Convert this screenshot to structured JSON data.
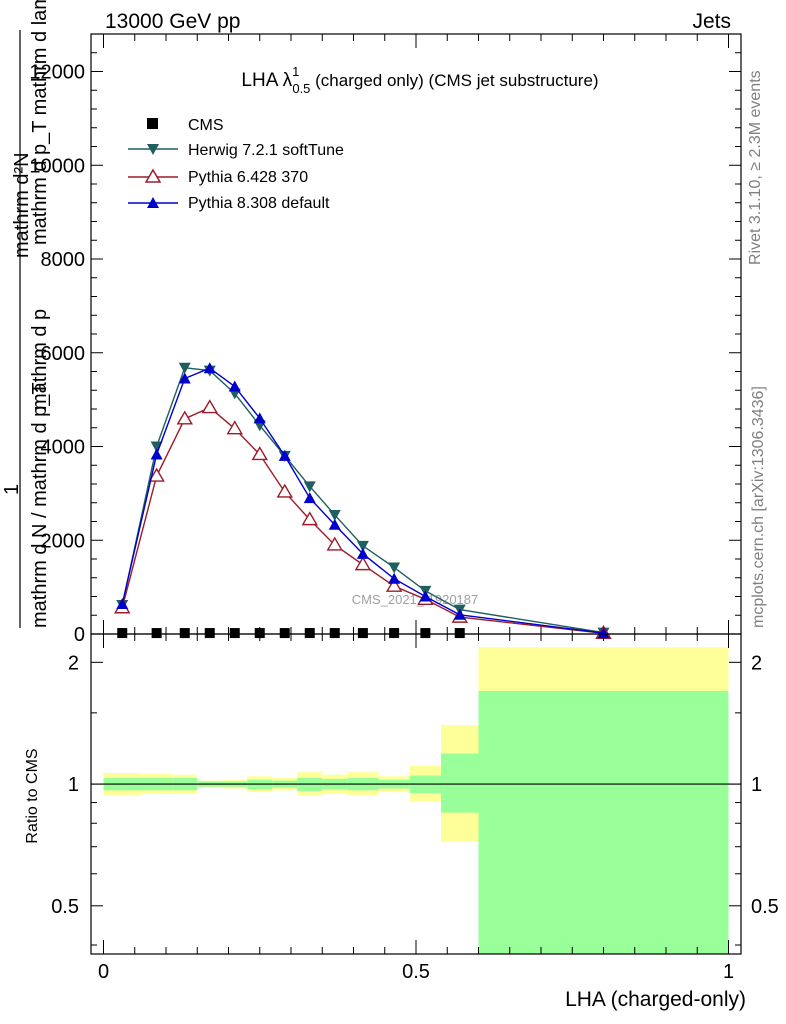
{
  "header": {
    "left": "13000 GeV pp",
    "right": "Jets"
  },
  "side_labels": {
    "upper": "Rivet 3.1.10, ≥ 2.3M events",
    "lower": "mcplots.cern.ch [arXiv:1306.3436]"
  },
  "watermark": "CMS_2021_I1920187",
  "chart_data": [
    {
      "type": "line",
      "title_main": "LHA λ",
      "title_sup": "1",
      "title_sub": "0.5",
      "title_rest": " (charged only) (CMS jet substructure)",
      "ylabel": {
        "num_top": "mathrm d²N",
        "num_bottom": "mathrm d p_T mathrm d lambda",
        "frac_one": "1",
        "den": "mathrm d N / mathrm d p_T",
        "den_extra": "mathrm d p"
      },
      "ylim": [
        0,
        12800
      ],
      "yticks": [
        0,
        2000,
        4000,
        6000,
        8000,
        10000,
        12000
      ],
      "ytick_labels": [
        "0",
        "2000",
        "4000",
        "6000",
        "8000",
        "10000",
        "12000"
      ],
      "xlim": [
        -0.02,
        1.02
      ],
      "legend_position": "top-left",
      "series": [
        {
          "name": "CMS",
          "color": "#000000",
          "marker": "square",
          "x": [
            0.03,
            0.085,
            0.13,
            0.17,
            0.21,
            0.25,
            0.29,
            0.33,
            0.37,
            0.415,
            0.465,
            0.515,
            0.57
          ],
          "values": [
            20,
            20,
            20,
            20,
            20,
            20,
            20,
            20,
            20,
            20,
            20,
            20,
            20
          ]
        },
        {
          "name": "Herwig 7.2.1 softTune",
          "color": "#1f5f5f",
          "marker": "triangle-down",
          "x": [
            0.03,
            0.085,
            0.13,
            0.17,
            0.21,
            0.25,
            0.29,
            0.33,
            0.37,
            0.415,
            0.465,
            0.515,
            0.57,
            0.8
          ],
          "values": [
            620,
            4000,
            5680,
            5620,
            5130,
            4450,
            3800,
            3150,
            2540,
            1880,
            1420,
            920,
            520,
            30
          ]
        },
        {
          "name": "Pythia 6.428 370",
          "color": "#9b1c2a",
          "marker": "triangle-up-open",
          "x": [
            0.03,
            0.085,
            0.13,
            0.17,
            0.21,
            0.25,
            0.29,
            0.33,
            0.37,
            0.415,
            0.465,
            0.515,
            0.57,
            0.8
          ],
          "values": [
            560,
            3370,
            4590,
            4830,
            4380,
            3830,
            3030,
            2440,
            1900,
            1480,
            1020,
            740,
            360,
            15
          ]
        },
        {
          "name": "Pythia 8.308 default",
          "color": "#0000cc",
          "marker": "triangle-up",
          "x": [
            0.03,
            0.085,
            0.13,
            0.17,
            0.21,
            0.25,
            0.29,
            0.33,
            0.37,
            0.415,
            0.465,
            0.515,
            0.57,
            0.8
          ],
          "values": [
            640,
            3830,
            5450,
            5670,
            5280,
            4600,
            3800,
            2900,
            2330,
            1710,
            1180,
            800,
            410,
            20
          ]
        }
      ]
    },
    {
      "type": "area",
      "ylabel": "Ratio to CMS",
      "ylim": [
        0.38,
        2.35
      ],
      "log_scale_y": true,
      "yticks": [
        0.5,
        1,
        2
      ],
      "ytick_labels": [
        "0.5",
        "1",
        "2"
      ],
      "xlim": [
        -0.02,
        1.02
      ],
      "xticks": [
        0,
        0.5,
        1
      ],
      "xtick_labels": [
        "0",
        "0.5",
        "1"
      ],
      "xlabel": "LHA (charged-only)",
      "band_colors": {
        "outer": "#ffff99",
        "inner": "#99ff99"
      },
      "reference_line": 1,
      "bins": [
        {
          "x0": 0.0,
          "x1": 0.06,
          "inner": [
            0.965,
            1.035
          ],
          "outer": [
            0.94,
            1.065
          ]
        },
        {
          "x0": 0.06,
          "x1": 0.11,
          "inner": [
            0.965,
            1.035
          ],
          "outer": [
            0.945,
            1.06
          ]
        },
        {
          "x0": 0.11,
          "x1": 0.15,
          "inner": [
            0.965,
            1.035
          ],
          "outer": [
            0.945,
            1.055
          ]
        },
        {
          "x0": 0.15,
          "x1": 0.19,
          "inner": [
            0.985,
            1.015
          ],
          "outer": [
            0.98,
            1.02
          ]
        },
        {
          "x0": 0.19,
          "x1": 0.23,
          "inner": [
            0.985,
            1.015
          ],
          "outer": [
            0.975,
            1.025
          ]
        },
        {
          "x0": 0.23,
          "x1": 0.27,
          "inner": [
            0.97,
            1.025
          ],
          "outer": [
            0.955,
            1.045
          ]
        },
        {
          "x0": 0.27,
          "x1": 0.31,
          "inner": [
            0.98,
            1.02
          ],
          "outer": [
            0.965,
            1.035
          ]
        },
        {
          "x0": 0.31,
          "x1": 0.35,
          "inner": [
            0.96,
            1.035
          ],
          "outer": [
            0.935,
            1.07
          ]
        },
        {
          "x0": 0.35,
          "x1": 0.39,
          "inner": [
            0.97,
            1.03
          ],
          "outer": [
            0.945,
            1.055
          ]
        },
        {
          "x0": 0.39,
          "x1": 0.44,
          "inner": [
            0.965,
            1.035
          ],
          "outer": [
            0.94,
            1.07
          ]
        },
        {
          "x0": 0.44,
          "x1": 0.49,
          "inner": [
            0.975,
            1.025
          ],
          "outer": [
            0.955,
            1.045
          ]
        },
        {
          "x0": 0.49,
          "x1": 0.54,
          "inner": [
            0.95,
            1.05
          ],
          "outer": [
            0.905,
            1.11
          ]
        },
        {
          "x0": 0.54,
          "x1": 0.6,
          "inner": [
            0.85,
            1.19
          ],
          "outer": [
            0.72,
            1.4
          ]
        },
        {
          "x0": 0.6,
          "x1": 1.0,
          "inner": [
            0.38,
            1.7
          ],
          "outer": [
            0.38,
            2.18
          ]
        }
      ]
    }
  ]
}
